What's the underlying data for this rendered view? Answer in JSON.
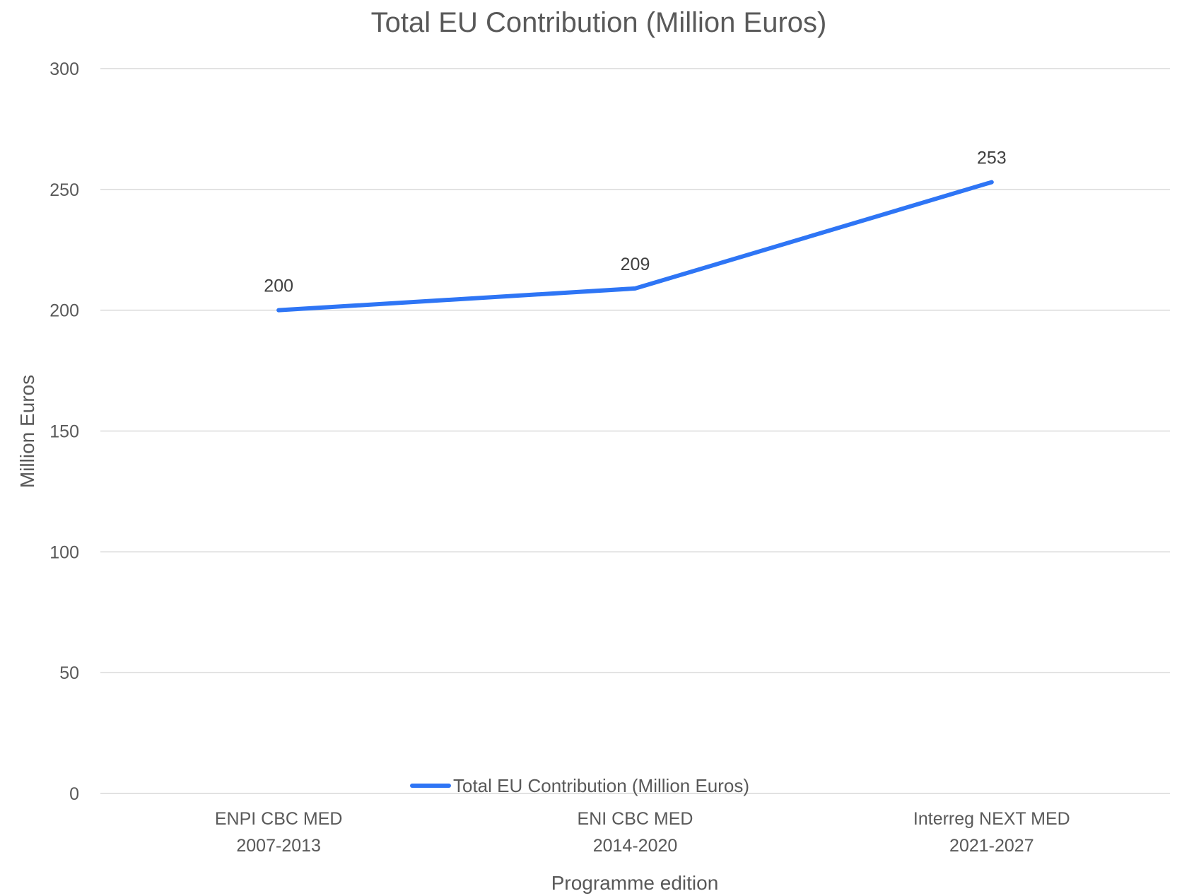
{
  "chart_data": {
    "type": "line",
    "title": "Total EU Contribution (Million Euros)",
    "xlabel": "Programme edition",
    "ylabel": "Million Euros",
    "ylim": [
      0,
      300
    ],
    "yticks": [
      "0",
      "50",
      "100",
      "150",
      "200",
      "250",
      "300"
    ],
    "categories": [
      [
        "ENPI CBC MED",
        "2007-2013"
      ],
      [
        "ENI CBC MED",
        "2014-2020"
      ],
      [
        "Interreg NEXT MED",
        "2021-2027"
      ]
    ],
    "series": [
      {
        "name": "Total EU Contribution (Million Euros)",
        "values": [
          200,
          209,
          253
        ],
        "data_labels": [
          "200",
          "209",
          "253"
        ],
        "color": "#2e75f5"
      }
    ],
    "grid": true,
    "legend_position": "bottom"
  }
}
